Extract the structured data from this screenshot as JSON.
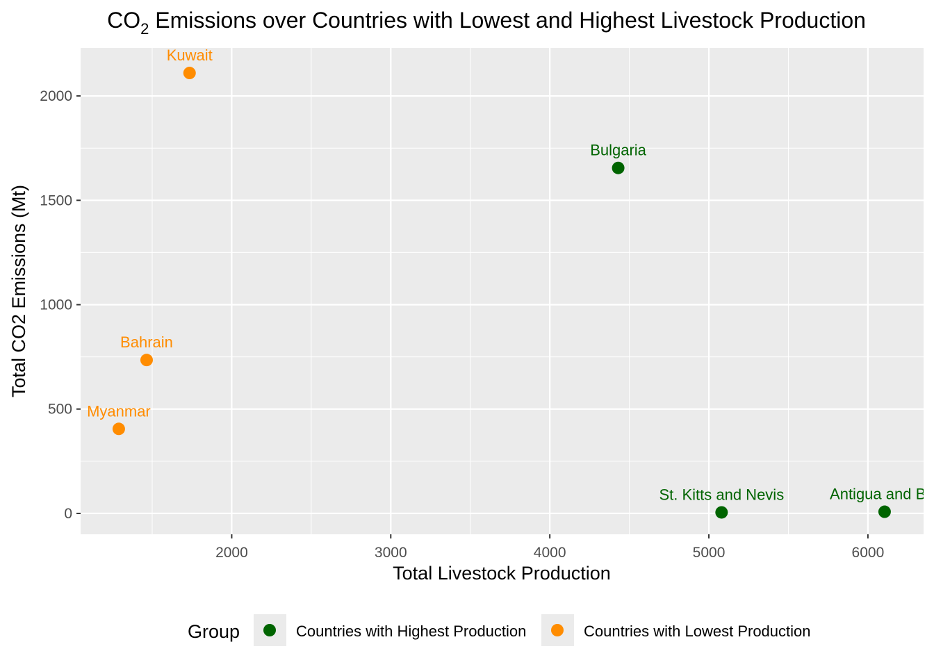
{
  "chart_data": {
    "type": "scatter",
    "title": "CO2 Emissions over Countries with Lowest and Highest Livestock Production",
    "title_main": "CO",
    "title_sub": "2",
    "title_rest": " Emissions over Countries with Lowest and Highest Livestock Production",
    "xlabel": "Total Livestock Production",
    "ylabel": "Total CO2 Emissions (Mt)",
    "xlim": [
      1050,
      6350
    ],
    "ylim": [
      -100,
      2230
    ],
    "xticks": [
      2000,
      3000,
      4000,
      5000,
      6000
    ],
    "xtick_labels": [
      "2000",
      "3000",
      "4000",
      "5000",
      "6000"
    ],
    "yticks": [
      0,
      500,
      1000,
      1500,
      2000
    ],
    "ytick_labels": [
      "0",
      "500",
      "1000",
      "1500",
      "2000"
    ],
    "grid": true,
    "legend": {
      "position": "bottom",
      "title": "Group",
      "entries": [
        {
          "label": "Countries with Highest Production",
          "color": "#006400"
        },
        {
          "label": "Countries with Lowest Production",
          "color": "#FF8C00"
        }
      ]
    },
    "series": [
      {
        "name": "Countries with Highest Production",
        "color": "#006400",
        "points": [
          {
            "x": 4430,
            "y": 1655,
            "label": "Bulgaria"
          },
          {
            "x": 5080,
            "y": 5,
            "label": "St. Kitts and Nevis"
          },
          {
            "x": 6105,
            "y": 8,
            "label": "Antigua and Bar"
          }
        ]
      },
      {
        "name": "Countries with Lowest Production",
        "color": "#FF8C00",
        "points": [
          {
            "x": 1735,
            "y": 2110,
            "label": "Kuwait"
          },
          {
            "x": 1465,
            "y": 735,
            "label": "Bahrain"
          },
          {
            "x": 1290,
            "y": 405,
            "label": "Myanmar"
          }
        ]
      }
    ]
  }
}
